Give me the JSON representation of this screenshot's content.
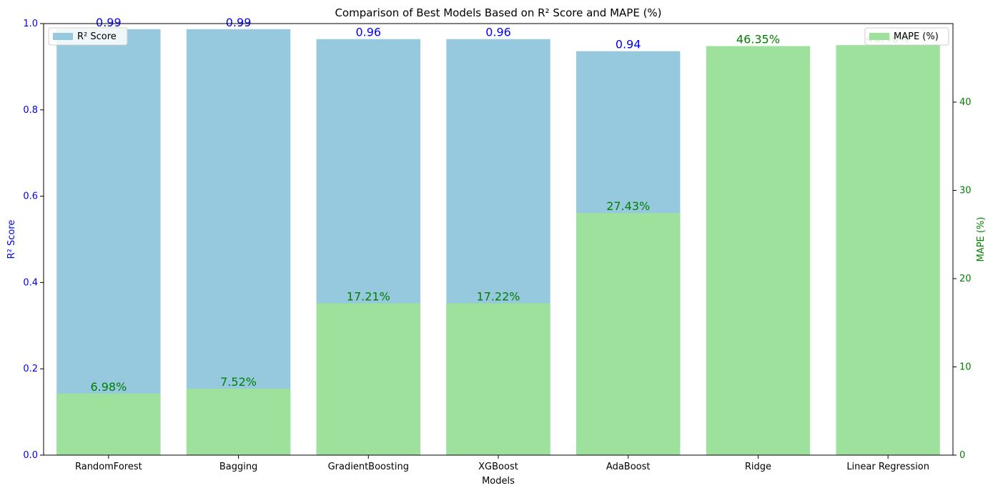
{
  "chart_data": {
    "type": "bar",
    "title": "Comparison of Best Models Based on R² Score and MAPE (%)",
    "xlabel": "Models",
    "categories": [
      "RandomForest",
      "Bagging",
      "GradientBoosting",
      "XGBoost",
      "AdaBoost",
      "Ridge",
      "Linear Regression"
    ],
    "left_axis": {
      "label": "R² Score",
      "ylim": [
        0,
        1.0
      ],
      "ticks": [
        "0.0",
        "0.2",
        "0.4",
        "0.6",
        "0.8",
        "1.0"
      ],
      "color": "#0000ff"
    },
    "right_axis": {
      "label": "MAPE (%)",
      "ylim": [
        0,
        48.9
      ],
      "ticks": [
        "0",
        "10",
        "20",
        "30",
        "40"
      ],
      "color": "#008000"
    },
    "series": [
      {
        "name": "R² Score",
        "axis": "left",
        "color": "#96c8de",
        "label_color": "#0000ff",
        "values": [
          0.987,
          0.987,
          0.964,
          0.964,
          0.936,
          0.0,
          0.0
        ],
        "labels": [
          "0.99",
          "0.99",
          "0.96",
          "0.96",
          "0.94",
          "",
          ""
        ]
      },
      {
        "name": "MAPE (%)",
        "axis": "right",
        "color": "#9de19d",
        "label_color": "#008000",
        "values": [
          6.98,
          7.52,
          17.21,
          17.22,
          27.43,
          46.35,
          46.46
        ],
        "labels": [
          "6.98%",
          "7.52%",
          "17.21%",
          "17.22%",
          "27.43%",
          "46.35%",
          "46.46%"
        ]
      }
    ],
    "legend": [
      {
        "label": "R² Score",
        "placement": "upper-left"
      },
      {
        "label": "MAPE (%)",
        "placement": "upper-right"
      }
    ],
    "grid": false
  }
}
